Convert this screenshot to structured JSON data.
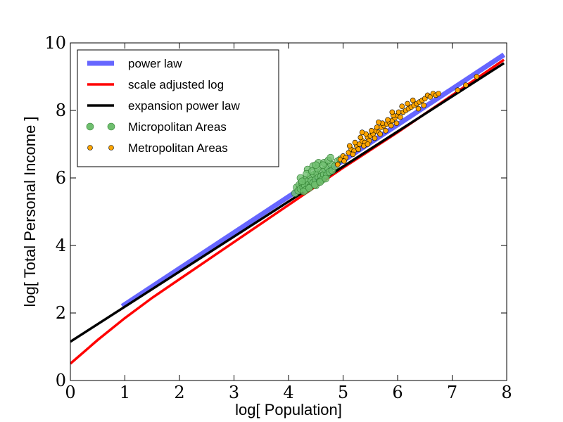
{
  "chart_data": {
    "type": "scatter",
    "title": "",
    "xlabel": "log[ Population]",
    "ylabel": "log[ Total Personal Income ]",
    "xlim": [
      0,
      8
    ],
    "ylim": [
      0,
      10
    ],
    "xticks": [
      "0",
      "1",
      "2",
      "3",
      "4",
      "5",
      "6",
      "7",
      "8"
    ],
    "yticks": [
      "0",
      "2",
      "4",
      "6",
      "8",
      "10"
    ],
    "legend_position": "top-left",
    "lines": [
      {
        "name": "power law",
        "color": "#6666ff",
        "points": [
          [
            0.95,
            2.2
          ],
          [
            7.95,
            9.65
          ]
        ]
      },
      {
        "name": "scale adjusted log",
        "color": "#ff0000",
        "points": [
          [
            0.0,
            0.5
          ],
          [
            0.5,
            1.2
          ],
          [
            1.0,
            1.85
          ],
          [
            1.5,
            2.45
          ],
          [
            2.0,
            3.0
          ],
          [
            2.5,
            3.55
          ],
          [
            3.0,
            4.1
          ],
          [
            3.5,
            4.65
          ],
          [
            4.0,
            5.2
          ],
          [
            5.0,
            6.3
          ],
          [
            6.0,
            7.35
          ],
          [
            7.0,
            8.45
          ],
          [
            7.95,
            9.5
          ]
        ]
      },
      {
        "name": "expansion power law",
        "color": "#000000",
        "points": [
          [
            0.0,
            1.15
          ],
          [
            7.95,
            9.4
          ]
        ]
      }
    ],
    "series": [
      {
        "name": "Micropolitan Areas",
        "color": "#6fbf6f",
        "points": [
          [
            4.12,
            5.55
          ],
          [
            4.15,
            5.72
          ],
          [
            4.18,
            5.62
          ],
          [
            4.2,
            5.8
          ],
          [
            4.22,
            5.68
          ],
          [
            4.25,
            5.85
          ],
          [
            4.27,
            5.72
          ],
          [
            4.3,
            5.95
          ],
          [
            4.3,
            5.78
          ],
          [
            4.32,
            5.65
          ],
          [
            4.35,
            5.9
          ],
          [
            4.37,
            5.8
          ],
          [
            4.4,
            5.75
          ],
          [
            4.4,
            6.05
          ],
          [
            4.42,
            5.92
          ],
          [
            4.45,
            5.85
          ],
          [
            4.47,
            6.1
          ],
          [
            4.5,
            5.95
          ],
          [
            4.5,
            5.78
          ],
          [
            4.52,
            6.15
          ],
          [
            4.55,
            6.02
          ],
          [
            4.57,
            5.9
          ],
          [
            4.6,
            6.2
          ],
          [
            4.6,
            6.05
          ],
          [
            4.62,
            5.95
          ],
          [
            4.65,
            6.1
          ],
          [
            4.67,
            6.25
          ],
          [
            4.7,
            6.08
          ],
          [
            4.72,
            6.3
          ],
          [
            4.75,
            6.18
          ],
          [
            4.78,
            6.4
          ],
          [
            4.8,
            6.22
          ],
          [
            4.35,
            6.25
          ],
          [
            4.45,
            6.35
          ],
          [
            4.55,
            6.45
          ],
          [
            4.65,
            6.45
          ],
          [
            4.28,
            5.6
          ],
          [
            4.38,
            5.7
          ],
          [
            4.48,
            5.8
          ],
          [
            4.58,
            5.88
          ],
          [
            4.68,
            5.98
          ],
          [
            4.85,
            6.35
          ],
          [
            4.9,
            6.5
          ],
          [
            4.22,
            6.0
          ],
          [
            4.33,
            6.12
          ],
          [
            4.43,
            6.2
          ],
          [
            4.53,
            6.28
          ],
          [
            4.63,
            6.38
          ],
          [
            4.73,
            6.52
          ],
          [
            4.77,
            6.6
          ],
          [
            4.95,
            6.55
          ],
          [
            4.25,
            5.9
          ],
          [
            4.5,
            6.38
          ]
        ]
      },
      {
        "name": "Metropolitan Areas",
        "color": "#ffa500",
        "points": [
          [
            4.9,
            6.4
          ],
          [
            4.95,
            6.55
          ],
          [
            5.0,
            6.65
          ],
          [
            5.05,
            6.6
          ],
          [
            5.1,
            6.75
          ],
          [
            5.15,
            6.85
          ],
          [
            5.2,
            6.8
          ],
          [
            5.25,
            6.95
          ],
          [
            5.3,
            7.0
          ],
          [
            5.35,
            7.1
          ],
          [
            5.4,
            7.05
          ],
          [
            5.45,
            7.2
          ],
          [
            5.5,
            7.25
          ],
          [
            5.55,
            7.3
          ],
          [
            5.6,
            7.4
          ],
          [
            5.65,
            7.35
          ],
          [
            5.7,
            7.5
          ],
          [
            5.75,
            7.55
          ],
          [
            5.8,
            7.6
          ],
          [
            5.85,
            7.65
          ],
          [
            5.9,
            7.7
          ],
          [
            5.95,
            7.78
          ],
          [
            6.0,
            7.85
          ],
          [
            6.05,
            7.8
          ],
          [
            6.1,
            7.95
          ],
          [
            6.15,
            8.0
          ],
          [
            6.2,
            8.05
          ],
          [
            6.25,
            8.1
          ],
          [
            6.3,
            8.15
          ],
          [
            6.35,
            8.2
          ],
          [
            6.4,
            8.25
          ],
          [
            6.45,
            8.3
          ],
          [
            6.5,
            8.35
          ],
          [
            6.55,
            8.45
          ],
          [
            6.6,
            8.4
          ],
          [
            6.65,
            8.5
          ],
          [
            6.7,
            8.45
          ],
          [
            6.75,
            8.5
          ],
          [
            7.1,
            8.6
          ],
          [
            7.25,
            8.75
          ],
          [
            7.45,
            9.0
          ],
          [
            5.12,
            6.95
          ],
          [
            5.22,
            7.05
          ],
          [
            5.32,
            7.2
          ],
          [
            5.42,
            7.3
          ],
          [
            5.52,
            7.4
          ],
          [
            5.62,
            7.5
          ],
          [
            5.72,
            7.62
          ],
          [
            5.82,
            7.72
          ],
          [
            5.92,
            7.85
          ],
          [
            6.02,
            7.95
          ],
          [
            5.02,
            6.5
          ],
          [
            5.18,
            6.7
          ],
          [
            5.28,
            6.85
          ],
          [
            5.38,
            6.95
          ],
          [
            5.48,
            7.1
          ],
          [
            5.58,
            7.18
          ],
          [
            5.68,
            7.3
          ],
          [
            5.78,
            7.4
          ],
          [
            5.88,
            7.55
          ],
          [
            5.98,
            7.62
          ],
          [
            5.9,
            7.95
          ],
          [
            6.08,
            8.12
          ],
          [
            6.18,
            8.2
          ],
          [
            6.38,
            8.05
          ],
          [
            6.48,
            8.15
          ],
          [
            5.45,
            7.0
          ],
          [
            5.35,
            7.35
          ],
          [
            5.65,
            7.65
          ],
          [
            6.28,
            8.3
          ]
        ]
      }
    ]
  }
}
